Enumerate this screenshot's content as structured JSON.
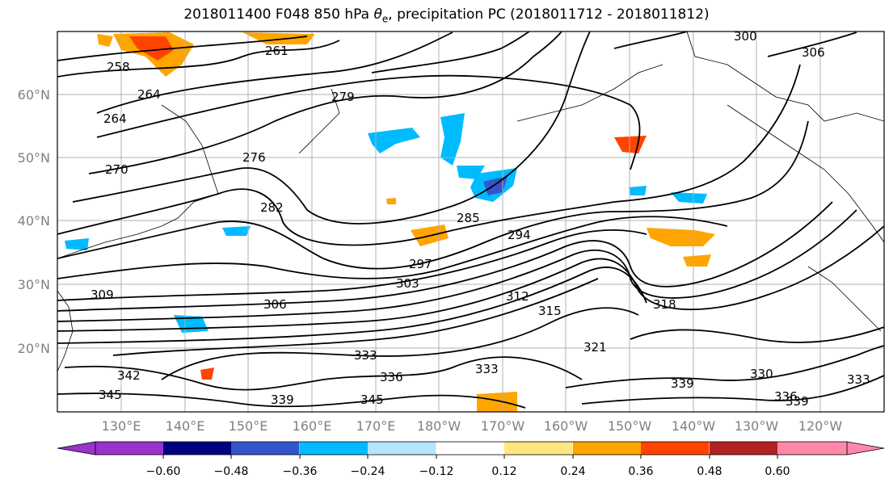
{
  "title_prefix": "2018011400 F048 850 hPa ",
  "title_var": "θ",
  "title_sub": "e",
  "title_suffix": ", precipitation PC (2018011712 - 2018011812)",
  "lat_labels": [
    "60°N",
    "50°N",
    "40°N",
    "30°N",
    "20°N"
  ],
  "lon_labels": [
    "130°E",
    "140°E",
    "150°E",
    "160°E",
    "170°E",
    "180°W",
    "170°W",
    "160°W",
    "150°W",
    "140°W",
    "130°W",
    "120°W"
  ],
  "colorbar": {
    "colors": [
      "#9933cc",
      "#000080",
      "#3355cc",
      "#00bbff",
      "#b3e5ff",
      "#ffffff",
      "#ffe680",
      "#ffa500",
      "#ff4400",
      "#b22222",
      "#ff88aa"
    ],
    "ticks": [
      "−0.60",
      "−0.48",
      "−0.36",
      "−0.24",
      "−0.12",
      "0.12",
      "0.24",
      "0.36",
      "0.48",
      "0.60"
    ]
  },
  "contour_labels": [
    "258",
    "261",
    "264",
    "264",
    "270",
    "279",
    "276",
    "282",
    "285",
    "294",
    "297",
    "303",
    "306",
    "309",
    "312",
    "315",
    "318",
    "321",
    "330",
    "333",
    "333",
    "333",
    "336",
    "336",
    "339",
    "339",
    "339",
    "342",
    "345",
    "345",
    "300",
    "306"
  ]
}
